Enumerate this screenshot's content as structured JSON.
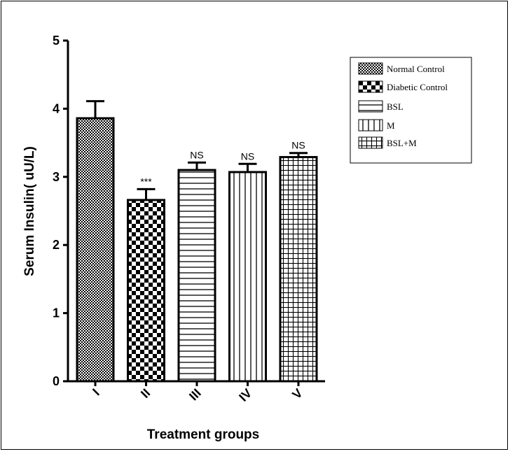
{
  "chart_data": {
    "type": "bar",
    "xlabel": "Treatment groups",
    "ylabel": "Serum Insulin( uU/L)",
    "ylim": [
      0,
      5
    ],
    "yticks": [
      0,
      1,
      2,
      3,
      4,
      5
    ],
    "categories": [
      "I",
      "II",
      "III",
      "IV",
      "V"
    ],
    "values": [
      3.86,
      2.66,
      3.1,
      3.07,
      3.29
    ],
    "errors": [
      0.25,
      0.16,
      0.11,
      0.12,
      0.06
    ],
    "annotations": [
      "",
      "***",
      "NS",
      "NS",
      "NS"
    ],
    "grid": false,
    "legend_position": "top-right",
    "legend": [
      "Normal Control",
      "Diabetic Control",
      "BSL",
      "M",
      "BSL+M"
    ],
    "patterns": [
      "fine-dots",
      "checker",
      "horizontal-lines",
      "vertical-lines",
      "grid"
    ],
    "colors": {
      "bar_fill": "#ffffff",
      "ink": "#000000"
    }
  }
}
